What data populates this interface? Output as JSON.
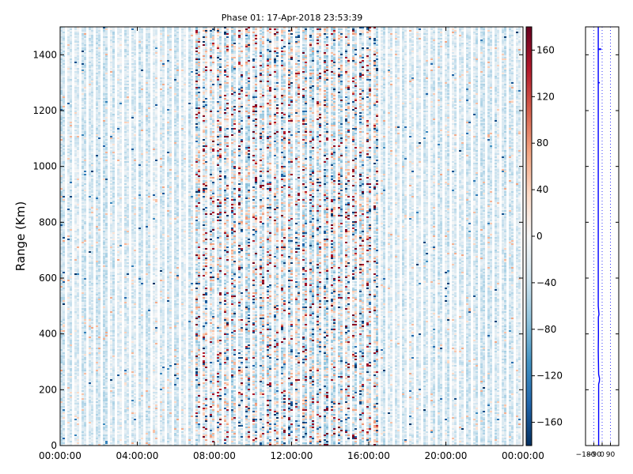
{
  "chart_data": [
    {
      "type": "heatmap",
      "title": "Phase 01: 17-Apr-2018 23:53:39",
      "xlabel": "",
      "ylabel": "Range (Km)",
      "x_range": [
        "00:00:00",
        "24:00:00"
      ],
      "x_ticks": [
        "00:00:00",
        "04:00:00",
        "08:00:00",
        "12:00:00",
        "16:00:00",
        "20:00:00",
        "00:00:00"
      ],
      "x_tick_hours": [
        0,
        4,
        8,
        12,
        16,
        20,
        24
      ],
      "ylim": [
        0,
        1500
      ],
      "y_ticks": [
        0,
        200,
        400,
        600,
        800,
        1000,
        1200,
        1400
      ],
      "colorbar": {
        "range": [
          -180,
          180
        ],
        "ticks": [
          -160,
          -120,
          -80,
          -40,
          0,
          40,
          80,
          120,
          160
        ],
        "tick_labels": [
          "−160",
          "−120",
          "−80",
          "−40",
          "0",
          "40",
          "80",
          "120",
          "160"
        ],
        "colormap": "RdBu_r"
      },
      "grid": false,
      "data_note_hours": {
        "active_band_start": 7.0,
        "active_band_end": 16.5
      }
    },
    {
      "type": "line",
      "xlim": [
        -180,
        180
      ],
      "x_ticks": [
        -180,
        -90,
        0,
        90
      ],
      "x_tick_labels": [
        "−180",
        "−90",
        "0",
        "90"
      ],
      "ylim": [
        0,
        1500
      ],
      "profile_color": "#0000ff",
      "grid_color": "#0000ff"
    }
  ],
  "colors": {
    "frame": "#000000",
    "background": "#ffffff",
    "profile": "#0000ff"
  }
}
